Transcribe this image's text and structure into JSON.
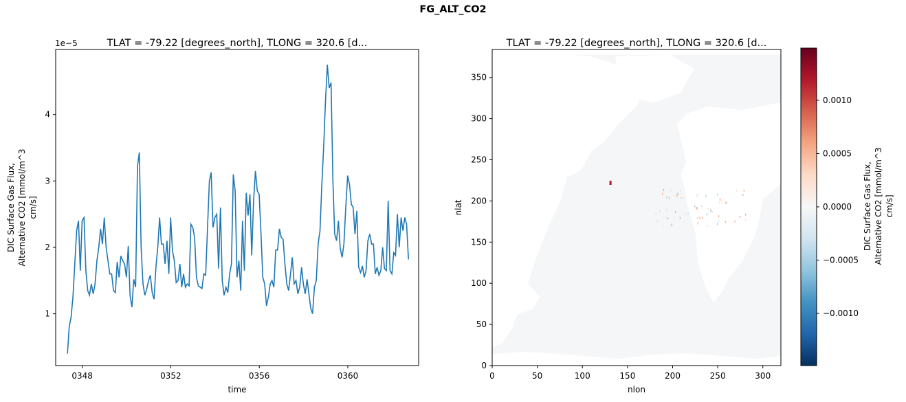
{
  "figure": {
    "suptitle": "FG_ALT_CO2"
  },
  "chart_data": [
    {
      "type": "line",
      "title": "TLAT = -79.22 [degrees_north], TLONG = 320.6 [d...",
      "xlabel": "time",
      "ylabel": [
        "DIC Surface Gas Flux,",
        "Alternative CO2 [mmol/m^3",
        "cm/s]"
      ],
      "y_offset_label": "1e−5",
      "xlim": [
        346.8,
        363.2
      ],
      "ylim": [
        0.22,
        4.98
      ],
      "x_ticks": [
        348,
        352,
        356,
        360
      ],
      "x_tick_labels": [
        "0348",
        "0352",
        "0356",
        "0360"
      ],
      "y_ticks": [
        1,
        2,
        3,
        4
      ],
      "y_tick_labels": [
        "1",
        "2",
        "3",
        "4"
      ],
      "line_color": "#1f77b4",
      "series": [
        {
          "x_start": 347.33,
          "x_step": 0.0833,
          "values": [
            0.4,
            0.8,
            0.95,
            1.25,
            1.75,
            2.25,
            2.4,
            1.65,
            2.4,
            2.45,
            1.65,
            1.35,
            1.28,
            1.45,
            1.3,
            1.45,
            1.8,
            2.0,
            2.28,
            2.05,
            2.45,
            2.0,
            1.8,
            1.6,
            1.6,
            1.35,
            1.32,
            1.78,
            1.55,
            1.87,
            1.8,
            1.75,
            1.55,
            2.02,
            1.28,
            1.1,
            1.52,
            1.4,
            3.22,
            3.43,
            2.0,
            1.45,
            1.28,
            1.37,
            1.5,
            1.58,
            1.32,
            1.22,
            1.7,
            2.0,
            2.45,
            2.05,
            2.05,
            1.75,
            2.1,
            1.6,
            2.45,
            1.95,
            1.8,
            1.47,
            1.5,
            1.75,
            1.4,
            1.6,
            1.4,
            1.45,
            1.42,
            2.35,
            2.3,
            2.15,
            1.55,
            1.42,
            1.4,
            1.38,
            1.6,
            1.58,
            2.3,
            3.0,
            3.13,
            2.3,
            2.45,
            2.5,
            1.68,
            2.6,
            1.5,
            1.28,
            1.4,
            1.32,
            1.6,
            1.75,
            3.1,
            2.85,
            1.55,
            1.8,
            1.35,
            2.4,
            1.65,
            2.82,
            2.48,
            2.8,
            1.88,
            2.7,
            3.15,
            2.85,
            2.8,
            2.2,
            1.55,
            1.45,
            1.12,
            1.25,
            1.45,
            1.5,
            1.4,
            1.96,
            1.96,
            2.28,
            2.15,
            2.12,
            1.75,
            1.45,
            1.35,
            1.6,
            1.85,
            1.45,
            1.5,
            1.3,
            1.4,
            1.7,
            1.45,
            1.3,
            1.52,
            1.3,
            1.08,
            1.0,
            1.4,
            1.5,
            2.05,
            2.25,
            2.95,
            3.5,
            4.2,
            4.75,
            4.4,
            4.48,
            3.0,
            2.2,
            2.1,
            2.4,
            1.98,
            1.85,
            2.05,
            2.6,
            3.08,
            2.95,
            2.65,
            2.6,
            2.2,
            2.55,
            1.7,
            1.62,
            1.72,
            1.55,
            1.65,
            2.1,
            2.2,
            2.05,
            2.05,
            1.6,
            1.7,
            1.58,
            1.65,
            2.0,
            1.68,
            1.65,
            2.7,
            1.65,
            1.6,
            1.92,
            1.88,
            2.5,
            2.0,
            2.45,
            2.25,
            2.45,
            2.35,
            1.82
          ]
        }
      ]
    },
    {
      "type": "heatmap",
      "title": "TLAT = -79.22 [degrees_north], TLONG = 320.6 [d...",
      "xlabel": "nlon",
      "ylabel": "nlat",
      "xlim": [
        0,
        320
      ],
      "ylim": [
        0,
        384
      ],
      "x_ticks": [
        0,
        50,
        100,
        150,
        200,
        250,
        300
      ],
      "y_ticks": [
        0,
        50,
        100,
        150,
        200,
        250,
        300,
        350
      ],
      "colormap": "RdBu_r",
      "colorbar": {
        "vmin": -0.00149,
        "vmax": 0.00149,
        "ticks": [
          0.001,
          0.0005,
          0.0,
          -0.0005,
          -0.001
        ],
        "tick_labels": [
          "0.0010",
          "0.0005",
          "0.0000",
          "−0.0005",
          "−0.0010"
        ],
        "label": [
          "DIC Surface Gas Flux,",
          "Alternative CO2 [mmol/m^3",
          "cm/s]"
        ]
      },
      "ocean_color": "#f5f6f7",
      "land_color": "#ffffff",
      "hot_spot": {
        "nlon": 130,
        "nlat": 222,
        "color": "#b2182b"
      }
    }
  ]
}
